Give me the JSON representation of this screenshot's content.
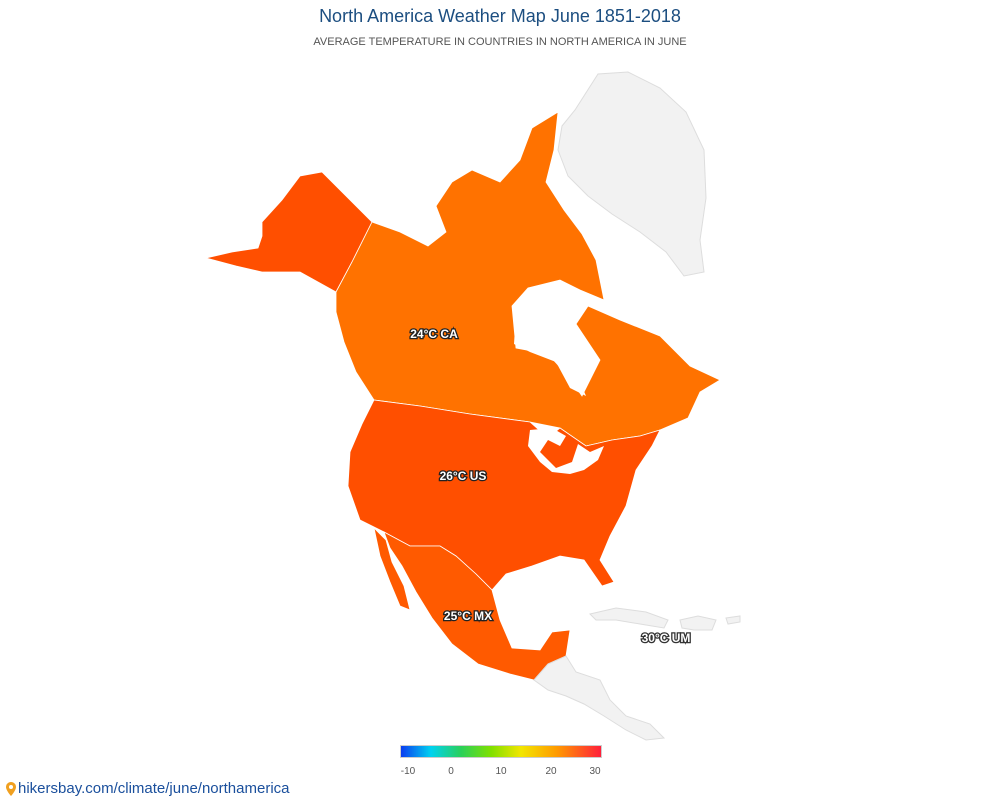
{
  "header": {
    "title": "North America Weather Map June 1851-2018",
    "subtitle": "AVERAGE TEMPERATURE IN COUNTRIES IN NORTH AMERICA IN JUNE"
  },
  "map": {
    "regions": [
      {
        "code": "CA",
        "label": "24°C CA",
        "temperature": 24,
        "color": "#ff7200"
      },
      {
        "code": "US",
        "label": "26°C US",
        "temperature": 26,
        "color": "#ff4f00"
      },
      {
        "code": "MX",
        "label": "25°C MX",
        "temperature": 25,
        "color": "#ff5a00"
      },
      {
        "code": "UM",
        "label": "30°C UM",
        "temperature": 30,
        "color": "#ff2a2a"
      }
    ],
    "no_data_color": "#f2f2f2"
  },
  "legend": {
    "ticks": [
      "-10",
      "0",
      "10",
      "20",
      "30"
    ],
    "min": -10,
    "max": 30
  },
  "footer": {
    "link_text": "hikersbay.com/climate/june/northamerica",
    "icon": "map-pin-icon"
  }
}
